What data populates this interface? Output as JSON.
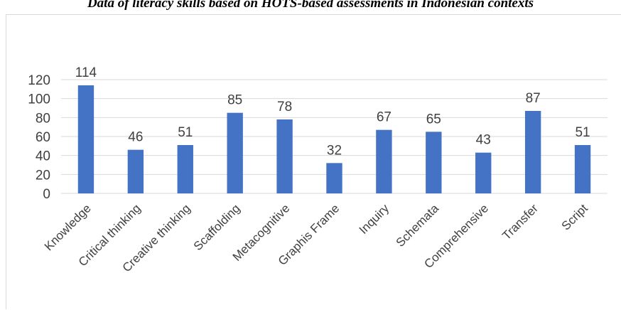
{
  "caption": "Data of literacy skills based on HOTS-based assessments in Indonesian contexts",
  "chart_data": {
    "type": "bar",
    "title": "",
    "xlabel": "",
    "ylabel": "",
    "categories": [
      "Knowledge",
      "Critical thinking",
      "Creative thinking",
      "Scaffolding",
      "Metacognitive",
      "Graphis Frame",
      "Inquiry",
      "Schemata",
      "Comprehensive",
      "Transfer",
      "Script"
    ],
    "values": [
      114,
      46,
      51,
      85,
      78,
      32,
      67,
      65,
      43,
      87,
      51
    ],
    "ylim": [
      0,
      120
    ],
    "yticks": [
      0,
      20,
      40,
      60,
      80,
      100,
      120
    ],
    "grid": true,
    "legend": "none",
    "bar_color": "#4472c4",
    "grid_color": "#d9d9d9"
  }
}
